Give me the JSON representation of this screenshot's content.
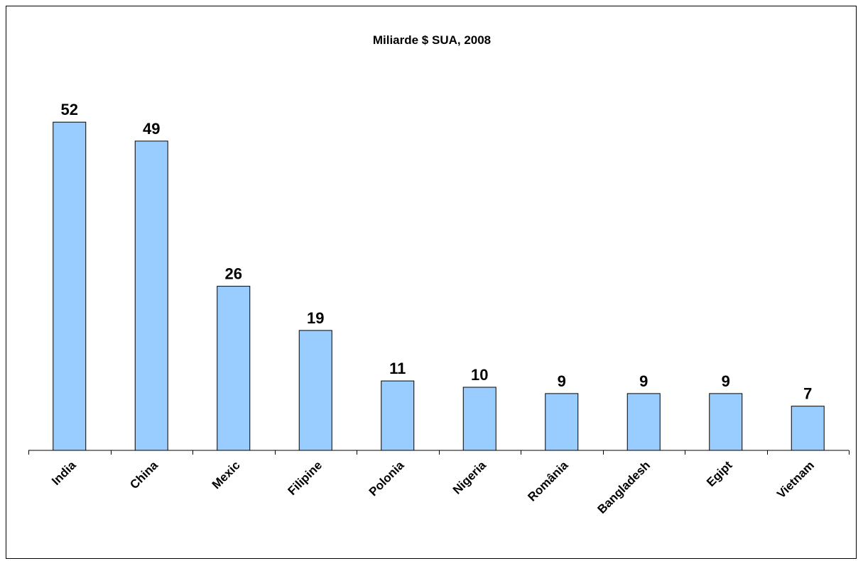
{
  "chart_data": {
    "type": "bar",
    "title": "Miliarde $ SUA, 2008",
    "xlabel": "",
    "ylabel": "",
    "categories": [
      "India",
      "China",
      "Mexic",
      "Filipine",
      "Polonia",
      "Nigeria",
      "România",
      "Bangladesh",
      "Egipt",
      "Vietnam"
    ],
    "values": [
      52,
      49,
      26,
      19,
      11,
      10,
      9,
      9,
      9,
      7
    ],
    "ylim": [
      0,
      60
    ],
    "grid": false,
    "legend": "none",
    "data_labels": true,
    "colors": {
      "bar_fill": "#99CCFF",
      "bar_stroke": "#000000",
      "axis": "#000000"
    }
  }
}
